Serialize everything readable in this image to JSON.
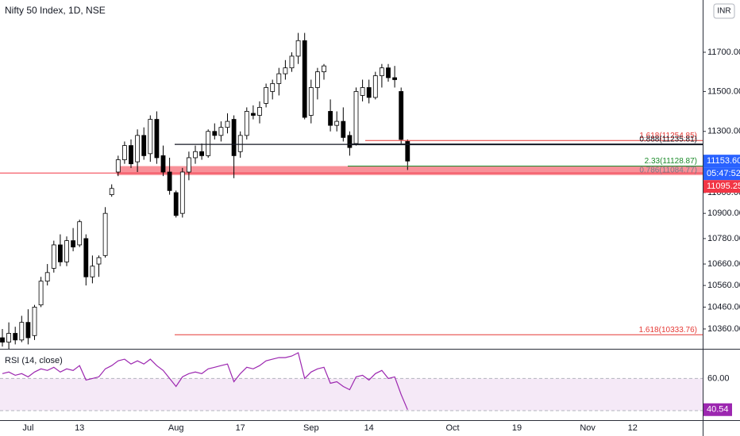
{
  "chart_data": {
    "type": "candlestick",
    "title": "Nifty 50 Index, 1D, NSE",
    "currency": "INR",
    "log_scale": true,
    "categories": [
      null,
      null,
      null,
      null,
      "Jul",
      null,
      null,
      null,
      null,
      null,
      null,
      null,
      "13",
      null,
      null,
      null,
      null,
      null,
      null,
      null,
      null,
      null,
      null,
      null,
      null,
      null,
      null,
      "Aug",
      null,
      null,
      null,
      null,
      null,
      null,
      null,
      null,
      null,
      "17",
      null,
      null,
      null,
      null,
      null,
      null,
      null,
      null,
      null,
      null,
      "Sep",
      null,
      null,
      null,
      null,
      null,
      null,
      null,
      null,
      "14",
      null,
      null,
      null,
      null,
      null,
      null,
      null,
      null,
      null,
      null,
      null,
      null,
      "Oct",
      null,
      null,
      null,
      null,
      null,
      null,
      null,
      null,
      null,
      "19",
      null,
      null,
      null,
      null,
      null,
      null,
      null,
      null,
      null,
      null,
      "Nov",
      null,
      null,
      null,
      null,
      null,
      null,
      "12",
      null,
      null,
      null,
      null,
      null,
      null,
      null,
      null,
      null,
      null
    ],
    "open": [
      10320,
      10300,
      10340,
      10310,
      10390,
      10330,
      10470,
      10580,
      10640,
      10750,
      10670,
      10770,
      10750,
      10780,
      10600,
      10660,
      10700,
      10990,
      11100,
      11160,
      11230,
      11150,
      11280,
      11190,
      11360,
      11180,
      11100,
      11000,
      10900,
      11100,
      11170,
      11200,
      11180,
      11300,
      11280,
      11320,
      11360,
      11200,
      11280,
      11390,
      11380,
      11440,
      11500,
      11540,
      11590,
      11620,
      11680,
      11760,
      11380,
      11520,
      11600,
      11400,
      11330,
      11350,
      11280,
      11240,
      11480,
      11520,
      11470,
      11580,
      11620,
      11570,
      11500,
      11250,
      null,
      null,
      null,
      null,
      null,
      null,
      null,
      null,
      null,
      null,
      null,
      null,
      null,
      null,
      null,
      null,
      null,
      null,
      null,
      null,
      null,
      null,
      null,
      null,
      null,
      null,
      null,
      null,
      null,
      null,
      null,
      null,
      null,
      null,
      null,
      null,
      null,
      null,
      null,
      null,
      null,
      null,
      null,
      null,
      null
    ],
    "high": [
      10360,
      10390,
      10370,
      10420,
      10450,
      10470,
      10600,
      10660,
      10770,
      10800,
      10790,
      10830,
      10870,
      10800,
      10700,
      10700,
      10930,
      11040,
      11180,
      11250,
      11260,
      11310,
      11320,
      11380,
      11400,
      11230,
      11170,
      11010,
      11120,
      11200,
      11230,
      11240,
      11310,
      11340,
      11350,
      11390,
      11380,
      11300,
      11420,
      11430,
      11450,
      11540,
      11560,
      11620,
      11660,
      11700,
      11800,
      11800,
      11560,
      11620,
      11640,
      11460,
      11400,
      11420,
      11300,
      11520,
      11560,
      11560,
      11600,
      11640,
      11640,
      11630,
      11520,
      11260,
      null,
      null,
      null,
      null,
      null,
      null,
      null,
      null,
      null,
      null,
      null,
      null,
      null,
      null,
      null,
      null,
      null,
      null,
      null,
      null,
      null,
      null,
      null,
      null,
      null,
      null,
      null,
      null,
      null,
      null,
      null,
      null,
      null,
      null,
      null,
      null,
      null,
      null,
      null,
      null,
      null,
      null,
      null,
      null,
      null
    ],
    "low": [
      10280,
      10270,
      10290,
      10300,
      10290,
      10310,
      10460,
      10560,
      10620,
      10650,
      10650,
      10720,
      10740,
      10560,
      10570,
      10600,
      10690,
      10980,
      11080,
      11140,
      11120,
      11100,
      11160,
      11150,
      11140,
      11080,
      10990,
      10880,
      10880,
      11060,
      11140,
      11160,
      11170,
      11260,
      11250,
      11290,
      11070,
      11170,
      11260,
      11360,
      11340,
      11420,
      11460,
      11480,
      11560,
      11600,
      11640,
      11360,
      11340,
      11460,
      11560,
      11300,
      11300,
      11250,
      11180,
      11230,
      11450,
      11440,
      11460,
      11520,
      11550,
      11520,
      11240,
      11110,
      null,
      null,
      null,
      null,
      null,
      null,
      null,
      null,
      null,
      null,
      null,
      null,
      null,
      null,
      null,
      null,
      null,
      null,
      null,
      null,
      null,
      null,
      null,
      null,
      null,
      null,
      null,
      null,
      null,
      null,
      null,
      null,
      null,
      null,
      null,
      null,
      null,
      null,
      null,
      null,
      null,
      null,
      null,
      null,
      null
    ],
    "close": [
      10300,
      10340,
      10310,
      10390,
      10320,
      10460,
      10580,
      10620,
      10750,
      10670,
      10770,
      10740,
      10860,
      10600,
      10650,
      10690,
      10900,
      11020,
      11160,
      11230,
      11140,
      11280,
      11180,
      11360,
      11170,
      11100,
      11010,
      10890,
      11100,
      11170,
      11200,
      11180,
      11300,
      11280,
      11320,
      11350,
      11180,
      11280,
      11400,
      11380,
      11420,
      11520,
      11540,
      11590,
      11620,
      11680,
      11760,
      11370,
      11520,
      11600,
      11630,
      11330,
      11350,
      11270,
      11220,
      11500,
      11520,
      11470,
      11580,
      11620,
      11570,
      11560,
      11260,
      11153.6,
      null,
      null,
      null,
      null,
      null,
      null,
      null,
      null,
      null,
      null,
      null,
      null,
      null,
      null,
      null,
      null,
      null,
      null,
      null,
      null,
      null,
      null,
      null,
      null,
      null,
      null,
      null,
      null,
      null,
      null,
      null,
      null,
      null,
      null,
      null,
      null,
      null,
      null,
      null,
      null,
      null,
      null,
      null,
      null,
      null
    ],
    "up_color": "#ffffff",
    "down_color": "#000000",
    "ylim": [
      10270,
      11972
    ],
    "yticks": [
      {
        "value": 11700,
        "label": "11700.00"
      },
      {
        "value": 11500,
        "label": "11500.00"
      },
      {
        "value": 11300,
        "label": "11300.00"
      },
      {
        "value": 11000,
        "label": "11000.00"
      },
      {
        "value": 10900,
        "label": "10900.00"
      },
      {
        "value": 10780,
        "label": "10780.00"
      },
      {
        "value": 10660,
        "label": "10660.00"
      },
      {
        "value": 10560,
        "label": "10560.00"
      },
      {
        "value": 10460,
        "label": "10460.00"
      },
      {
        "value": 10360,
        "label": "10360.00"
      }
    ],
    "levels": [
      {
        "label": "1.618(11254.85)",
        "value": 11254.85,
        "color": "#e53935"
      },
      {
        "label": "0.888(11235.81)",
        "value": 11235.81,
        "color": "#131722"
      },
      {
        "label": "2.33(11128.87)",
        "value": 11128.87,
        "color": "#1b8a2a"
      },
      {
        "label": "0.786(11084.77)",
        "value": 11084.77,
        "color": "#787b86"
      },
      {
        "label": "1.618(10333.76)",
        "value": 10333.76,
        "color": "#e53935"
      }
    ],
    "price_labels": [
      {
        "value": 11153.6,
        "label": "11153.60",
        "color": "#2962ff"
      },
      {
        "value": 11095.25,
        "label": "11095.25",
        "color": "#f23645"
      }
    ],
    "countdown": "05:47:52",
    "rsi": {
      "title": "RSI (14, close)",
      "color": "#9c27b0",
      "values": [
        63,
        64,
        62,
        63,
        61,
        64,
        66,
        65,
        67,
        64,
        66,
        65,
        68,
        59,
        60,
        61,
        66,
        68,
        71,
        72,
        69,
        71,
        69,
        72,
        68,
        65,
        60,
        55,
        61,
        63,
        64,
        63,
        66,
        67,
        68,
        69,
        58,
        63,
        67,
        66,
        68,
        71,
        72,
        73,
        73,
        74,
        76,
        60,
        64,
        66,
        67,
        57,
        58,
        55,
        53,
        61,
        62,
        59,
        63,
        65,
        60,
        61,
        50,
        40.54,
        null,
        null,
        null,
        null,
        null,
        null,
        null,
        null,
        null,
        null,
        null,
        null,
        null,
        null,
        null,
        null,
        null,
        null,
        null,
        null,
        null,
        null,
        null,
        null,
        null,
        null,
        null,
        null,
        null,
        null,
        null,
        null,
        null,
        null,
        null,
        null,
        null,
        null,
        null,
        null,
        null,
        null,
        null,
        null,
        null
      ],
      "last": {
        "value": 40.54,
        "label": "40.54"
      },
      "ylim": [
        34,
        78
      ],
      "yticks": [
        {
          "value": 60,
          "label": "60.00"
        }
      ]
    }
  }
}
